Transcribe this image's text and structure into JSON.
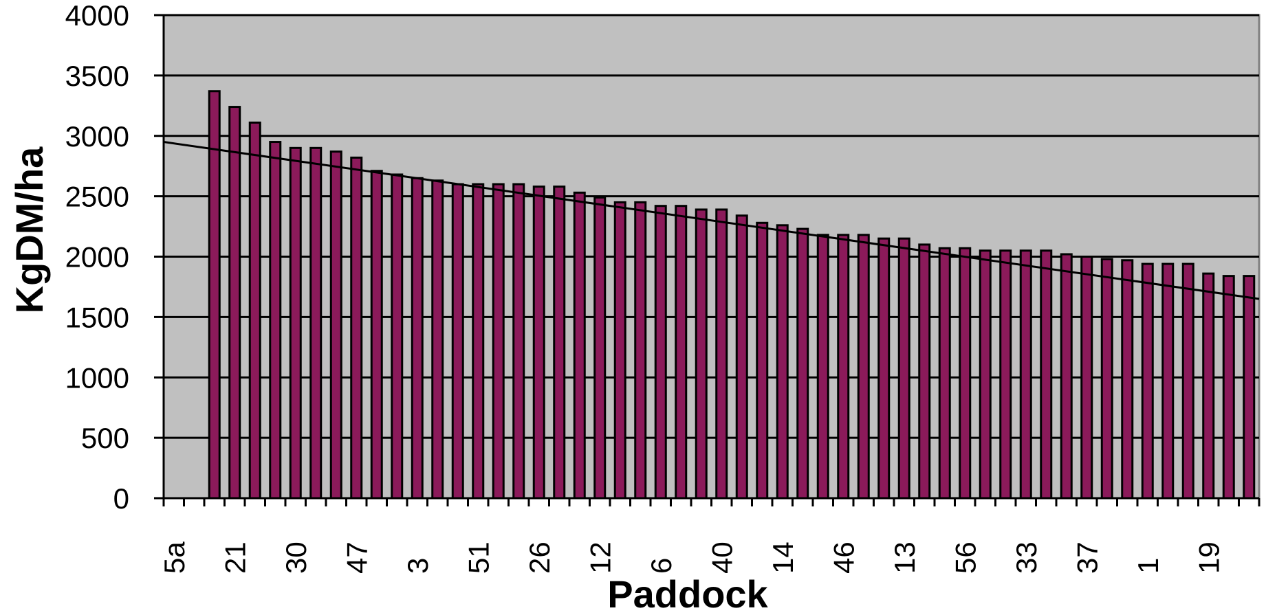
{
  "chart_data": {
    "type": "bar",
    "xlabel": "Paddock",
    "ylabel": "KgDM/ha",
    "ylim": [
      0,
      4000
    ],
    "yticks": [
      0,
      500,
      1000,
      1500,
      2000,
      2500,
      3000,
      3500,
      4000
    ],
    "grid": true,
    "legend": "none",
    "categories": [
      "5a",
      "",
      "",
      "21",
      "",
      "",
      "30",
      "",
      "",
      "47",
      "",
      "",
      "3",
      "",
      "",
      "51",
      "",
      "",
      "26",
      "",
      "",
      "12",
      "",
      "",
      "6",
      "",
      "",
      "40",
      "",
      "",
      "14",
      "",
      "",
      "46",
      "",
      "",
      "13",
      "",
      "",
      "56",
      "",
      "",
      "33",
      "",
      "",
      "37",
      "",
      "",
      "1",
      "",
      "",
      "19",
      "",
      ""
    ],
    "values": [
      0,
      0,
      3370,
      3240,
      3110,
      2950,
      2900,
      2900,
      2870,
      2820,
      2710,
      2680,
      2650,
      2630,
      2600,
      2600,
      2600,
      2600,
      2580,
      2580,
      2530,
      2490,
      2450,
      2450,
      2420,
      2420,
      2390,
      2390,
      2340,
      2280,
      2260,
      2230,
      2180,
      2180,
      2180,
      2150,
      2150,
      2100,
      2070,
      2070,
      2050,
      2050,
      2050,
      2050,
      2020,
      2000,
      1980,
      1970,
      1940,
      1940,
      1940,
      1860,
      1840,
      1840
    ],
    "trendline": {
      "type": "linear",
      "start": 2950,
      "end": 1650
    },
    "colors": {
      "bar": "#8B1A5A",
      "plot_background": "#C0C0C0",
      "gridline": "#000000",
      "trendline": "#000000"
    }
  }
}
